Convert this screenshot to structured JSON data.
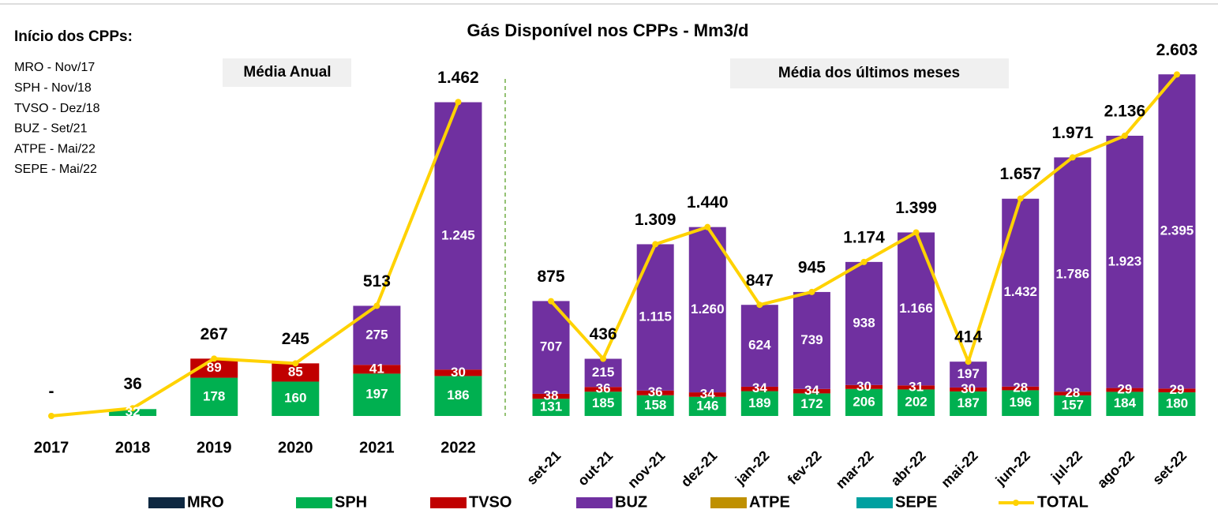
{
  "header": {
    "title": "Gás Disponível nos CPPs - Mm3/d",
    "notes_title": "Início dos CPPs:",
    "notes": [
      "MRO  - Nov/17",
      "SPH   - Nov/18",
      "TVSO - Dez/18",
      "BUZ  - Set/21",
      "ATPE - Mai/22",
      "SEPE - Mai/22"
    ]
  },
  "chart_data": [
    {
      "type": "bar",
      "stacked": true,
      "subtitle": "Média Anual",
      "categories": [
        "2017",
        "2018",
        "2019",
        "2020",
        "2021",
        "2022"
      ],
      "ylim": [
        0,
        1790
      ],
      "series": [
        {
          "name": "MRO",
          "color": "#0e2841",
          "values": [
            null,
            null,
            null,
            null,
            null,
            null
          ]
        },
        {
          "name": "SPH",
          "color": "#00b050",
          "values": [
            null,
            32,
            178,
            160,
            197,
            186
          ]
        },
        {
          "name": "TVSO",
          "color": "#c00000",
          "values": [
            null,
            null,
            89,
            85,
            41,
            30
          ]
        },
        {
          "name": "BUZ",
          "color": "#7030a0",
          "values": [
            null,
            null,
            null,
            null,
            275,
            1245
          ],
          "value_labels": [
            null,
            null,
            null,
            null,
            "275",
            "1.245"
          ]
        },
        {
          "name": "ATPE",
          "color": "#bf9000",
          "values": [
            null,
            null,
            null,
            null,
            null,
            null
          ]
        },
        {
          "name": "SEPE",
          "color": "#00a0a0",
          "values": [
            null,
            null,
            null,
            null,
            null,
            null
          ]
        },
        {
          "name": "TOTAL",
          "type": "line",
          "color": "#ffd200",
          "values": [
            0,
            36,
            267,
            245,
            513,
            1462
          ],
          "value_labels": [
            "-",
            "36",
            "267",
            "245",
            "513",
            "1.462"
          ]
        }
      ]
    },
    {
      "type": "bar",
      "stacked": true,
      "subtitle": "Média dos últimos meses",
      "categories": [
        "set-21",
        "out-21",
        "nov-21",
        "dez-21",
        "jan-22",
        "fev-22",
        "mar-22",
        "abr-22",
        "mai-22",
        "jun-22",
        "jul-22",
        "ago-22",
        "set-22"
      ],
      "ylim": [
        0,
        2930
      ],
      "series": [
        {
          "color": "#00b050",
          "values": [
            131,
            185,
            158,
            146,
            189,
            172,
            206,
            202,
            187,
            196,
            157,
            184,
            180
          ]
        },
        {
          "color": "#c00000",
          "values": [
            38,
            36,
            36,
            34,
            34,
            34,
            30,
            31,
            30,
            28,
            28,
            29,
            29
          ]
        },
        {
          "color": "#7030a0",
          "values": [
            707,
            215,
            1115,
            1260,
            624,
            739,
            938,
            1166,
            197,
            1432,
            1786,
            1923,
            2395
          ],
          "value_labels": [
            "707",
            "215",
            "1.115",
            "1.260",
            "624",
            "739",
            "938",
            "1.166",
            "197",
            "1.432",
            "1.786",
            "1.923",
            "2.395"
          ]
        },
        {
          "type": "line",
          "color": "#ffd200",
          "values": [
            875,
            436,
            1309,
            1440,
            847,
            945,
            1174,
            1399,
            414,
            1657,
            1971,
            2136,
            2603
          ],
          "value_labels": [
            "875",
            "436",
            "1.309",
            "1.440",
            "847",
            "945",
            "1.174",
            "1.399",
            "414",
            "1.657",
            "1.971",
            "2.136",
            "2.603"
          ]
        }
      ]
    }
  ]
}
